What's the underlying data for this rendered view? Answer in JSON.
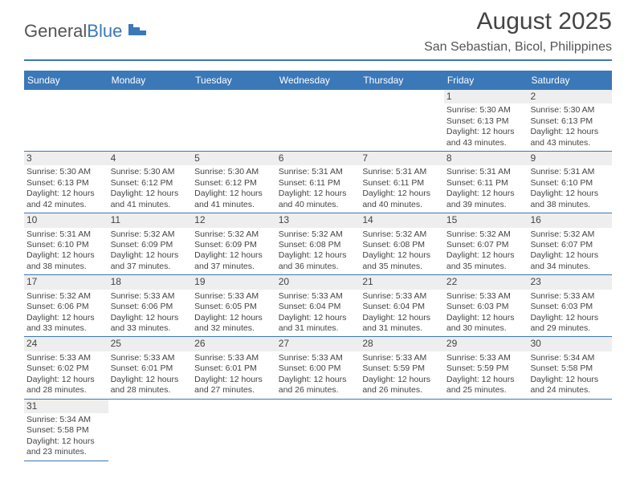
{
  "logo": {
    "part1": "General",
    "part2": "Blue"
  },
  "title": "August 2025",
  "location": "San Sebastian, Bicol, Philippines",
  "colors": {
    "brand": "#3b78b8",
    "daynum_bg": "#eeeeee",
    "text": "#444444",
    "bg": "#ffffff"
  },
  "dow": [
    "Sunday",
    "Monday",
    "Tuesday",
    "Wednesday",
    "Thursday",
    "Friday",
    "Saturday"
  ],
  "weeks": [
    [
      null,
      null,
      null,
      null,
      null,
      {
        "d": "1",
        "sr": "Sunrise: 5:30 AM",
        "ss": "Sunset: 6:13 PM",
        "dl1": "Daylight: 12 hours",
        "dl2": "and 43 minutes."
      },
      {
        "d": "2",
        "sr": "Sunrise: 5:30 AM",
        "ss": "Sunset: 6:13 PM",
        "dl1": "Daylight: 12 hours",
        "dl2": "and 43 minutes."
      }
    ],
    [
      {
        "d": "3",
        "sr": "Sunrise: 5:30 AM",
        "ss": "Sunset: 6:13 PM",
        "dl1": "Daylight: 12 hours",
        "dl2": "and 42 minutes."
      },
      {
        "d": "4",
        "sr": "Sunrise: 5:30 AM",
        "ss": "Sunset: 6:12 PM",
        "dl1": "Daylight: 12 hours",
        "dl2": "and 41 minutes."
      },
      {
        "d": "5",
        "sr": "Sunrise: 5:30 AM",
        "ss": "Sunset: 6:12 PM",
        "dl1": "Daylight: 12 hours",
        "dl2": "and 41 minutes."
      },
      {
        "d": "6",
        "sr": "Sunrise: 5:31 AM",
        "ss": "Sunset: 6:11 PM",
        "dl1": "Daylight: 12 hours",
        "dl2": "and 40 minutes."
      },
      {
        "d": "7",
        "sr": "Sunrise: 5:31 AM",
        "ss": "Sunset: 6:11 PM",
        "dl1": "Daylight: 12 hours",
        "dl2": "and 40 minutes."
      },
      {
        "d": "8",
        "sr": "Sunrise: 5:31 AM",
        "ss": "Sunset: 6:11 PM",
        "dl1": "Daylight: 12 hours",
        "dl2": "and 39 minutes."
      },
      {
        "d": "9",
        "sr": "Sunrise: 5:31 AM",
        "ss": "Sunset: 6:10 PM",
        "dl1": "Daylight: 12 hours",
        "dl2": "and 38 minutes."
      }
    ],
    [
      {
        "d": "10",
        "sr": "Sunrise: 5:31 AM",
        "ss": "Sunset: 6:10 PM",
        "dl1": "Daylight: 12 hours",
        "dl2": "and 38 minutes."
      },
      {
        "d": "11",
        "sr": "Sunrise: 5:32 AM",
        "ss": "Sunset: 6:09 PM",
        "dl1": "Daylight: 12 hours",
        "dl2": "and 37 minutes."
      },
      {
        "d": "12",
        "sr": "Sunrise: 5:32 AM",
        "ss": "Sunset: 6:09 PM",
        "dl1": "Daylight: 12 hours",
        "dl2": "and 37 minutes."
      },
      {
        "d": "13",
        "sr": "Sunrise: 5:32 AM",
        "ss": "Sunset: 6:08 PM",
        "dl1": "Daylight: 12 hours",
        "dl2": "and 36 minutes."
      },
      {
        "d": "14",
        "sr": "Sunrise: 5:32 AM",
        "ss": "Sunset: 6:08 PM",
        "dl1": "Daylight: 12 hours",
        "dl2": "and 35 minutes."
      },
      {
        "d": "15",
        "sr": "Sunrise: 5:32 AM",
        "ss": "Sunset: 6:07 PM",
        "dl1": "Daylight: 12 hours",
        "dl2": "and 35 minutes."
      },
      {
        "d": "16",
        "sr": "Sunrise: 5:32 AM",
        "ss": "Sunset: 6:07 PM",
        "dl1": "Daylight: 12 hours",
        "dl2": "and 34 minutes."
      }
    ],
    [
      {
        "d": "17",
        "sr": "Sunrise: 5:32 AM",
        "ss": "Sunset: 6:06 PM",
        "dl1": "Daylight: 12 hours",
        "dl2": "and 33 minutes."
      },
      {
        "d": "18",
        "sr": "Sunrise: 5:33 AM",
        "ss": "Sunset: 6:06 PM",
        "dl1": "Daylight: 12 hours",
        "dl2": "and 33 minutes."
      },
      {
        "d": "19",
        "sr": "Sunrise: 5:33 AM",
        "ss": "Sunset: 6:05 PM",
        "dl1": "Daylight: 12 hours",
        "dl2": "and 32 minutes."
      },
      {
        "d": "20",
        "sr": "Sunrise: 5:33 AM",
        "ss": "Sunset: 6:04 PM",
        "dl1": "Daylight: 12 hours",
        "dl2": "and 31 minutes."
      },
      {
        "d": "21",
        "sr": "Sunrise: 5:33 AM",
        "ss": "Sunset: 6:04 PM",
        "dl1": "Daylight: 12 hours",
        "dl2": "and 31 minutes."
      },
      {
        "d": "22",
        "sr": "Sunrise: 5:33 AM",
        "ss": "Sunset: 6:03 PM",
        "dl1": "Daylight: 12 hours",
        "dl2": "and 30 minutes."
      },
      {
        "d": "23",
        "sr": "Sunrise: 5:33 AM",
        "ss": "Sunset: 6:03 PM",
        "dl1": "Daylight: 12 hours",
        "dl2": "and 29 minutes."
      }
    ],
    [
      {
        "d": "24",
        "sr": "Sunrise: 5:33 AM",
        "ss": "Sunset: 6:02 PM",
        "dl1": "Daylight: 12 hours",
        "dl2": "and 28 minutes."
      },
      {
        "d": "25",
        "sr": "Sunrise: 5:33 AM",
        "ss": "Sunset: 6:01 PM",
        "dl1": "Daylight: 12 hours",
        "dl2": "and 28 minutes."
      },
      {
        "d": "26",
        "sr": "Sunrise: 5:33 AM",
        "ss": "Sunset: 6:01 PM",
        "dl1": "Daylight: 12 hours",
        "dl2": "and 27 minutes."
      },
      {
        "d": "27",
        "sr": "Sunrise: 5:33 AM",
        "ss": "Sunset: 6:00 PM",
        "dl1": "Daylight: 12 hours",
        "dl2": "and 26 minutes."
      },
      {
        "d": "28",
        "sr": "Sunrise: 5:33 AM",
        "ss": "Sunset: 5:59 PM",
        "dl1": "Daylight: 12 hours",
        "dl2": "and 26 minutes."
      },
      {
        "d": "29",
        "sr": "Sunrise: 5:33 AM",
        "ss": "Sunset: 5:59 PM",
        "dl1": "Daylight: 12 hours",
        "dl2": "and 25 minutes."
      },
      {
        "d": "30",
        "sr": "Sunrise: 5:34 AM",
        "ss": "Sunset: 5:58 PM",
        "dl1": "Daylight: 12 hours",
        "dl2": "and 24 minutes."
      }
    ],
    [
      {
        "d": "31",
        "sr": "Sunrise: 5:34 AM",
        "ss": "Sunset: 5:58 PM",
        "dl1": "Daylight: 12 hours",
        "dl2": "and 23 minutes."
      },
      null,
      null,
      null,
      null,
      null,
      null
    ]
  ]
}
